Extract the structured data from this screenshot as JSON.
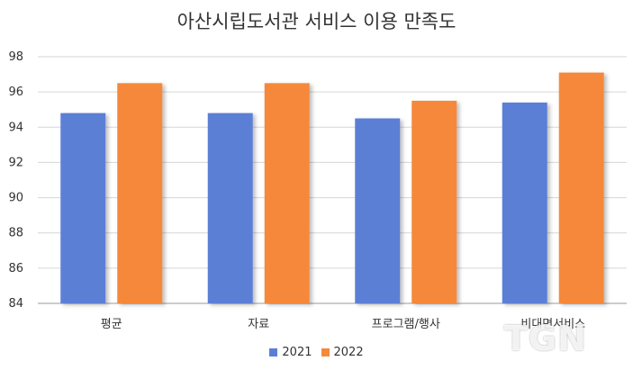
{
  "chart_data": {
    "type": "bar",
    "title": "아산시립도서관 서비스 이용 만족도",
    "categories": [
      "평균",
      "자료",
      "프로그램/행사",
      "비대면서비스"
    ],
    "series": [
      {
        "name": "2021",
        "values": [
          94.8,
          94.8,
          94.5,
          95.4
        ],
        "color": "#5b7fd6"
      },
      {
        "name": "2022",
        "values": [
          96.5,
          96.5,
          95.5,
          97.1
        ],
        "color": "#f5883b"
      }
    ],
    "ylim": [
      84,
      98
    ],
    "yticks": [
      "84",
      "86",
      "88",
      "90",
      "92",
      "94",
      "96",
      "98"
    ],
    "grid": true,
    "legend": "bottom"
  },
  "watermark": "TGN"
}
